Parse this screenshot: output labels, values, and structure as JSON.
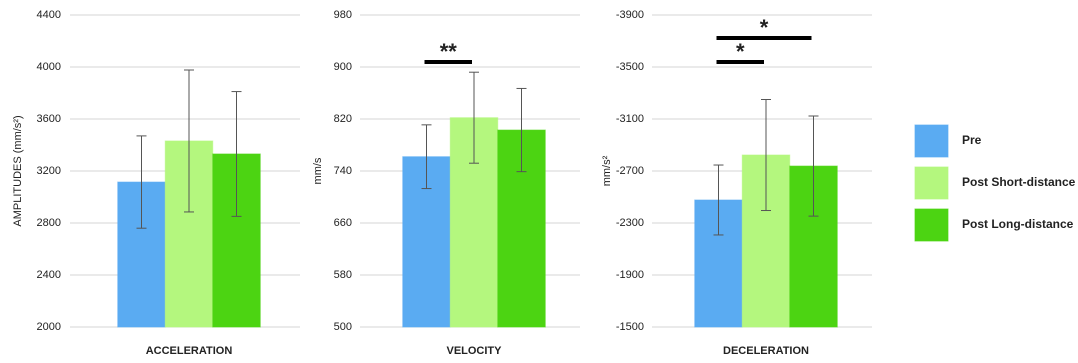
{
  "chart_data": [
    {
      "type": "bar",
      "categories": [
        "ACCELERATION"
      ],
      "y_label": "AMPLITUDES  (mm/s²)",
      "ylim": [
        2000,
        4400
      ],
      "yticks": [
        2000,
        2400,
        2800,
        3200,
        3600,
        4000,
        4400
      ],
      "grid": true,
      "series": [
        {
          "values": [
            3115
          ],
          "errors": [
            355
          ]
        },
        {
          "values": [
            3431
          ],
          "errors": [
            546
          ]
        },
        {
          "values": [
            3331
          ],
          "errors": [
            480
          ]
        }
      ],
      "annotations": []
    },
    {
      "type": "bar",
      "categories": [
        "VELOCITY"
      ],
      "y_label": "mm/s",
      "ylim": [
        500,
        980
      ],
      "yticks": [
        500,
        580,
        660,
        740,
        820,
        900,
        980
      ],
      "grid": true,
      "series": [
        {
          "values": [
            762
          ],
          "errors": [
            49
          ]
        },
        {
          "values": [
            822
          ],
          "errors": [
            70
          ]
        },
        {
          "values": [
            803
          ],
          "errors": [
            64
          ]
        }
      ],
      "annotations": [
        {
          "text": "**",
          "series": [
            0,
            1
          ]
        }
      ]
    },
    {
      "type": "bar",
      "categories": [
        "DECELERATION"
      ],
      "y_label": "mm/s²",
      "ylim": [
        -1500,
        -3900
      ],
      "yticks": [
        -1500,
        -1900,
        -2300,
        -2700,
        -3100,
        -3500,
        -3900
      ],
      "grid": true,
      "series": [
        {
          "values": [
            -2477
          ],
          "errors": [
            269
          ]
        },
        {
          "values": [
            -2823
          ],
          "errors": [
            427
          ]
        },
        {
          "values": [
            -2738
          ],
          "errors": [
            385
          ]
        }
      ],
      "annotations": [
        {
          "text": "*",
          "series": [
            0,
            1
          ]
        },
        {
          "text": "*",
          "series": [
            0,
            2
          ]
        }
      ]
    }
  ],
  "legend": [
    {
      "name": "Pre",
      "color": "#5aabf2"
    },
    {
      "name": "Post Short-distance",
      "color": "#b4f77e"
    },
    {
      "name": "Post Long-distance",
      "color": "#4cd412"
    }
  ]
}
